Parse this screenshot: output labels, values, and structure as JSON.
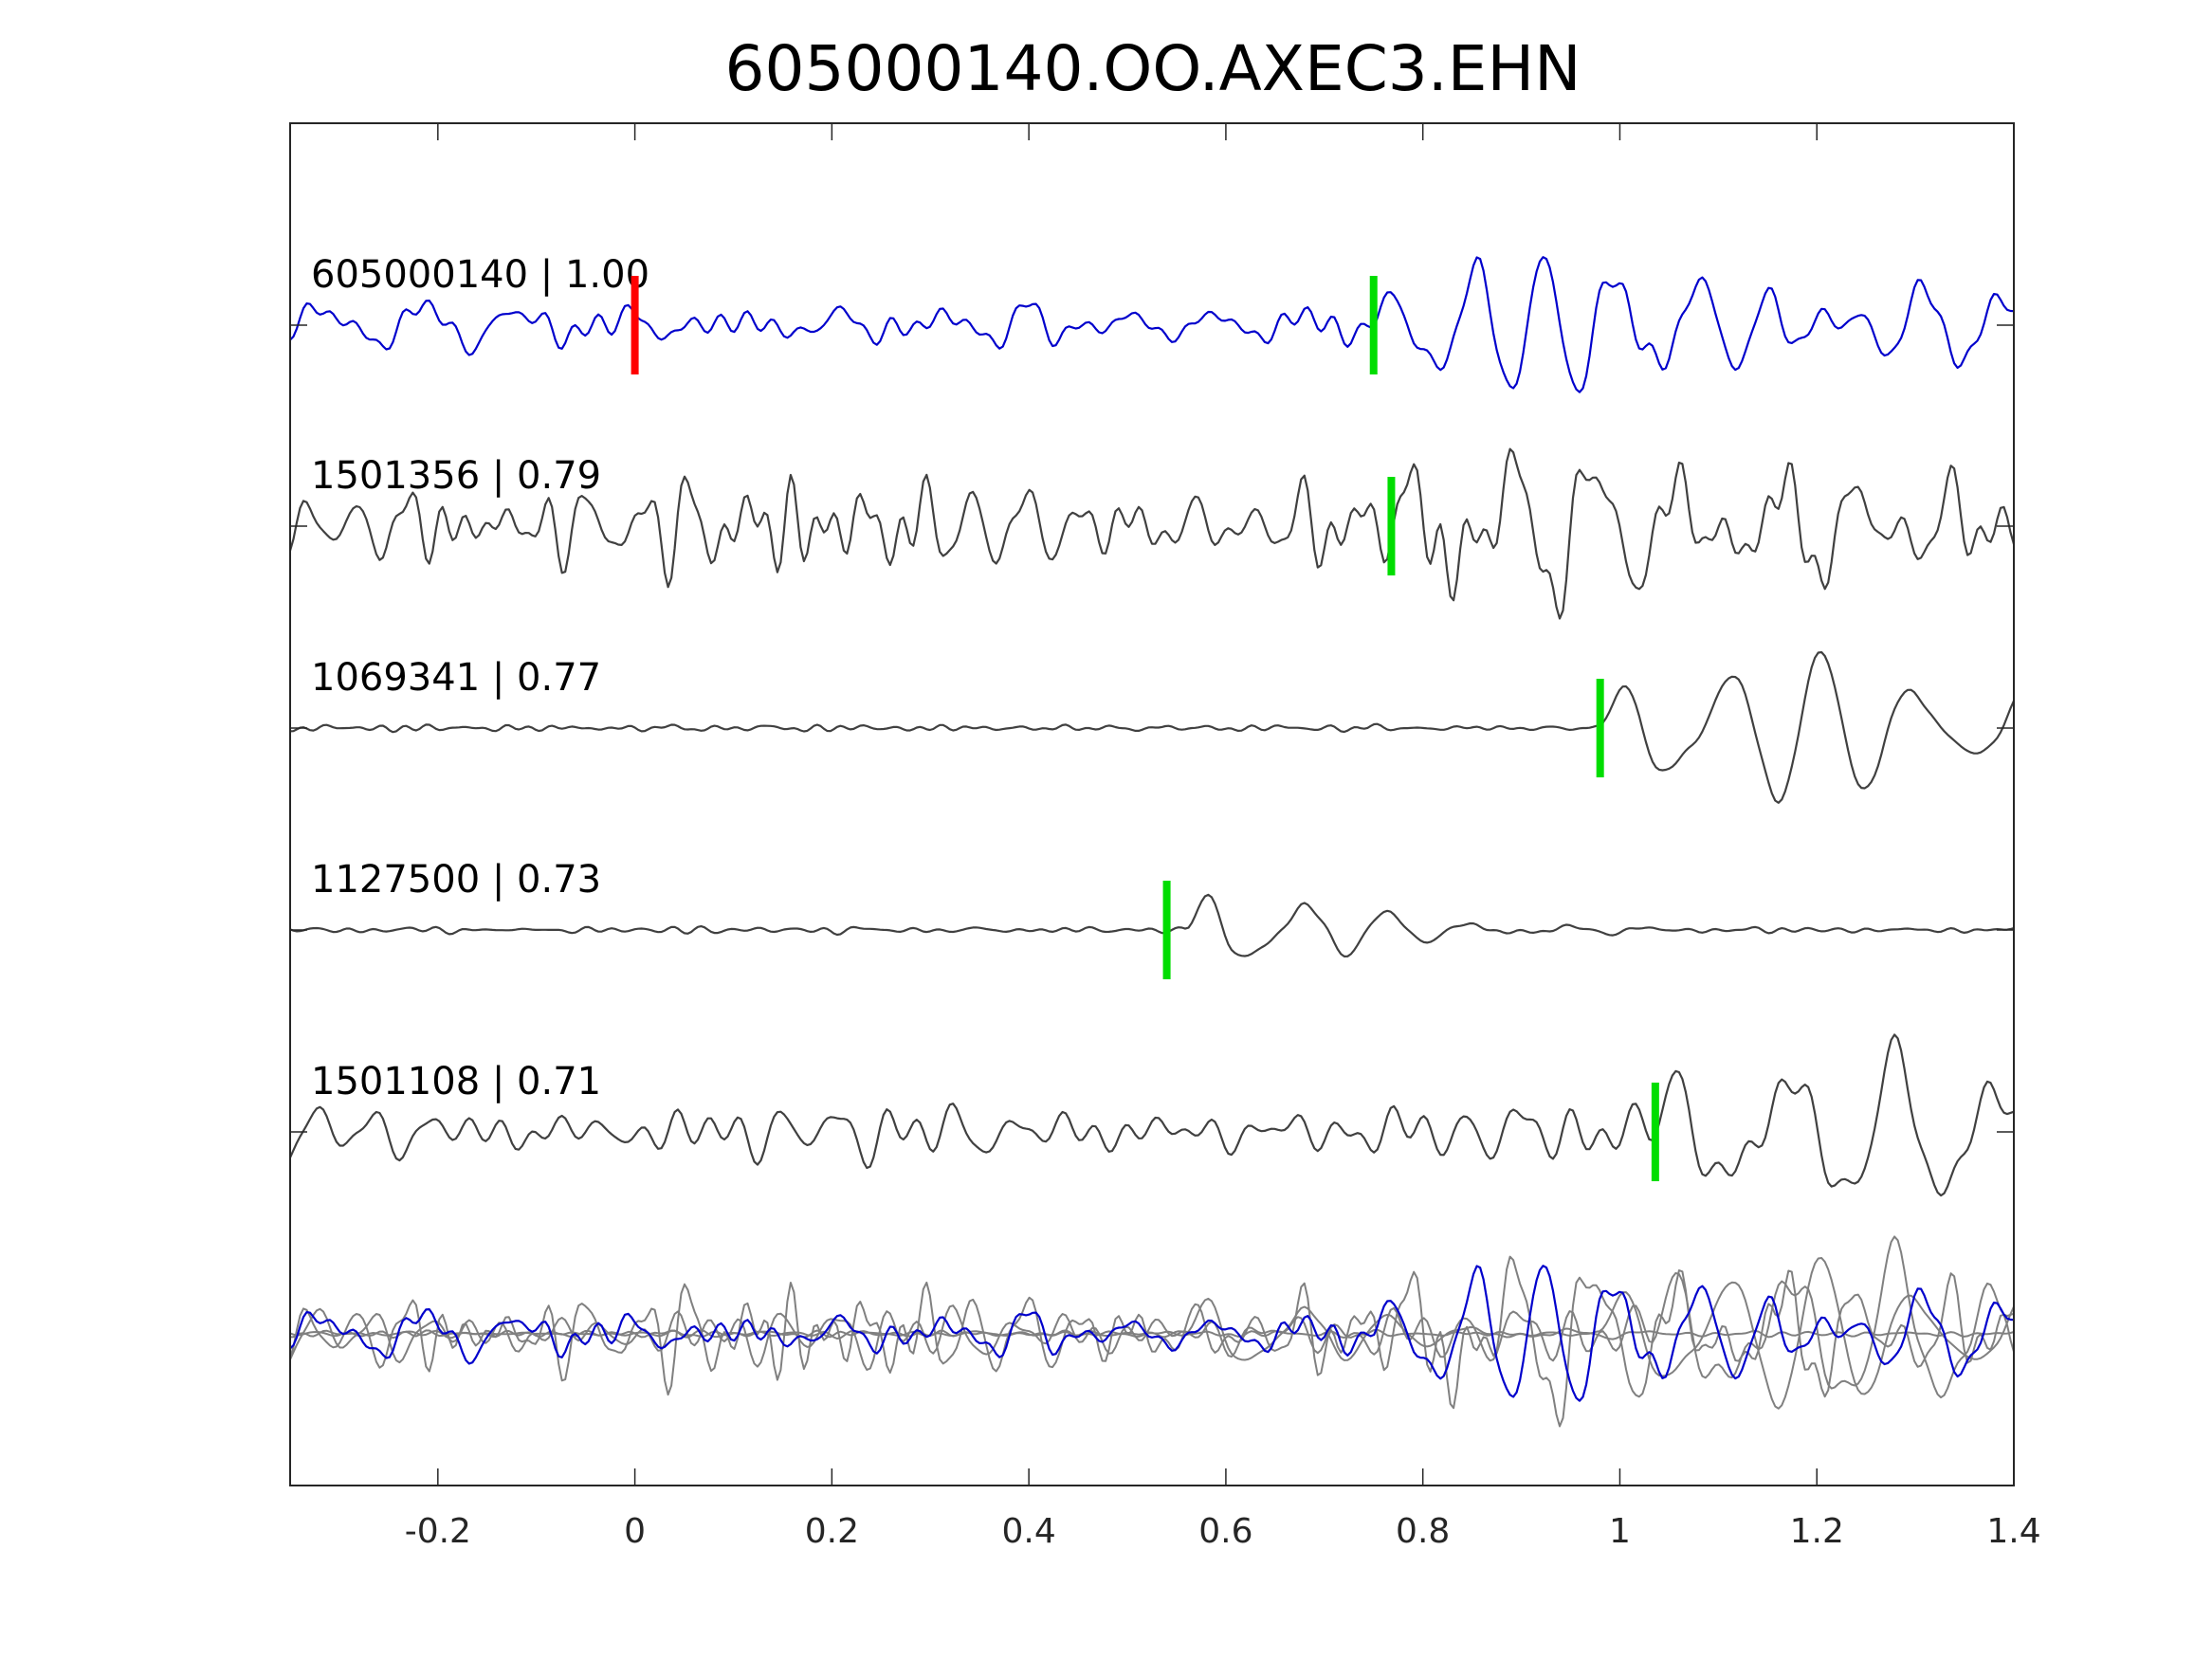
{
  "chart_data": {
    "type": "line",
    "title": "605000140.OO.AXEC3.EHN",
    "xlabel": "",
    "ylabel": "",
    "xlim": [
      -0.35,
      1.4
    ],
    "xticks": [
      -0.2,
      0,
      0.2,
      0.4,
      0.6,
      0.8,
      1,
      1.2,
      1.4
    ],
    "xtick_labels": [
      "-0.2",
      "0",
      "0.2",
      "0.4",
      "0.6",
      "0.8",
      "1",
      "1.2",
      "1.4"
    ],
    "grid": false,
    "colors": {
      "template": "#0000cc",
      "match": "#404040",
      "overlay": "#808080",
      "pick_reference": "#ff0000",
      "pick_arrival": "#00dd00",
      "axes": "#262626"
    },
    "series": [
      {
        "label": "605000140 | 1.00",
        "role": "template",
        "pick_reference": 0.0,
        "pick_arrival": 0.75,
        "noise_amp": 0.22,
        "arrival": 0.75,
        "signal_amp": 1.0,
        "freq": 13,
        "decay": 0.45,
        "seed": 11
      },
      {
        "label": "1501356 | 0.79",
        "role": "match",
        "pick_arrival": 0.768,
        "noise_amp": 0.45,
        "arrival": 0.77,
        "signal_amp": 1.05,
        "freq": 11,
        "decay": 0.5,
        "seed": 23
      },
      {
        "label": "1069341 | 0.77",
        "role": "match",
        "pick_arrival": 0.98,
        "noise_amp": 0.04,
        "arrival": 0.98,
        "signal_amp": 1.0,
        "freq": 10,
        "decay": 0.6,
        "seed": 37
      },
      {
        "label": "1127500 | 0.73",
        "role": "match",
        "pick_arrival": 0.54,
        "noise_amp": 0.03,
        "arrival": 0.56,
        "signal_amp": 1.0,
        "freq": 11,
        "decay": 0.12,
        "seed": 41
      },
      {
        "label": "1501108 | 0.71",
        "role": "match",
        "pick_arrival": 1.036,
        "noise_amp": 0.35,
        "arrival": 1.03,
        "signal_amp": 1.05,
        "freq": 9,
        "decay": 0.5,
        "seed": 53
      }
    ],
    "overlay": {
      "description_role": "stack of all traces",
      "included_series": [
        0,
        1,
        2,
        3,
        4
      ]
    }
  }
}
